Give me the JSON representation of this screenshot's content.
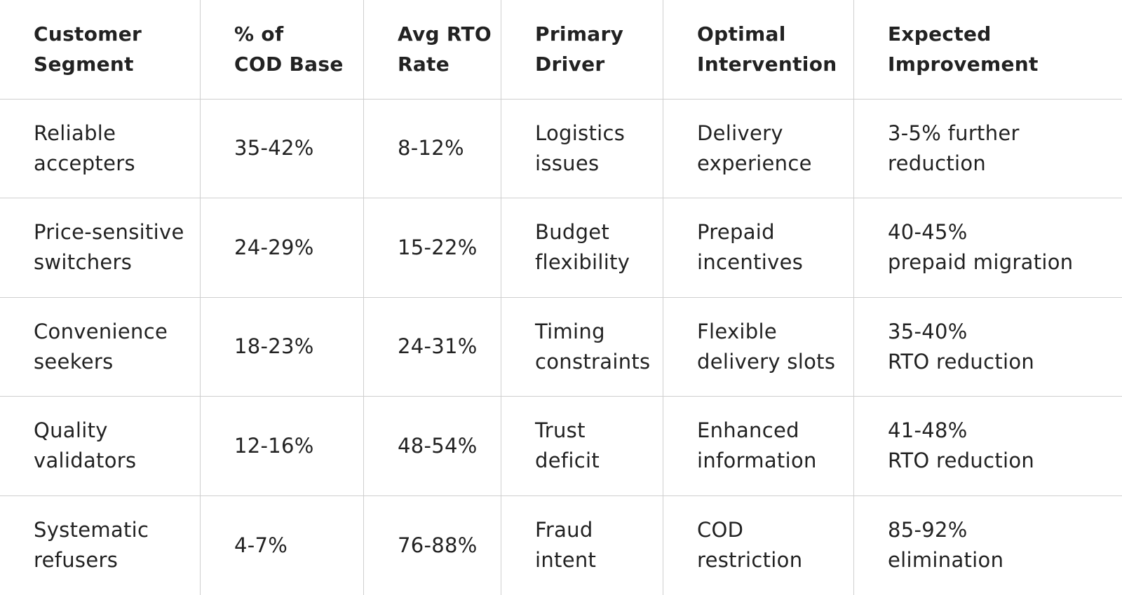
{
  "table": {
    "header": [
      [
        "Customer",
        "Segment"
      ],
      [
        "% of",
        "COD Base"
      ],
      [
        "Avg RTO",
        "Rate"
      ],
      [
        "Primary",
        "Driver"
      ],
      [
        "Optimal",
        "Intervention"
      ],
      [
        "Expected",
        "Improvement"
      ]
    ],
    "rows": [
      [
        [
          "Reliable",
          "accepters"
        ],
        [
          "35-42%"
        ],
        [
          "8-12%"
        ],
        [
          "Logistics",
          "issues"
        ],
        [
          "Delivery",
          "experience"
        ],
        [
          "3-5% further",
          "reduction"
        ]
      ],
      [
        [
          "Price-sensitive",
          "switchers"
        ],
        [
          "24-29%"
        ],
        [
          "15-22%"
        ],
        [
          "Budget",
          "flexibility"
        ],
        [
          "Prepaid",
          "incentives"
        ],
        [
          "40-45%",
          "prepaid migration"
        ]
      ],
      [
        [
          "Convenience",
          "seekers"
        ],
        [
          "18-23%"
        ],
        [
          "24-31%"
        ],
        [
          "Timing",
          "constraints"
        ],
        [
          "Flexible",
          "delivery slots"
        ],
        [
          "35-40%",
          "RTO reduction"
        ]
      ],
      [
        [
          "Quality",
          "validators"
        ],
        [
          "12-16%"
        ],
        [
          "48-54%"
        ],
        [
          "Trust",
          "deficit"
        ],
        [
          "Enhanced",
          "information"
        ],
        [
          "41-48%",
          "RTO reduction"
        ]
      ],
      [
        [
          "Systematic",
          "refusers"
        ],
        [
          "4-7%"
        ],
        [
          "76-88%"
        ],
        [
          "Fraud",
          "intent"
        ],
        [
          "COD",
          "restriction"
        ],
        [
          "85-92%",
          "elimination"
        ]
      ]
    ]
  }
}
